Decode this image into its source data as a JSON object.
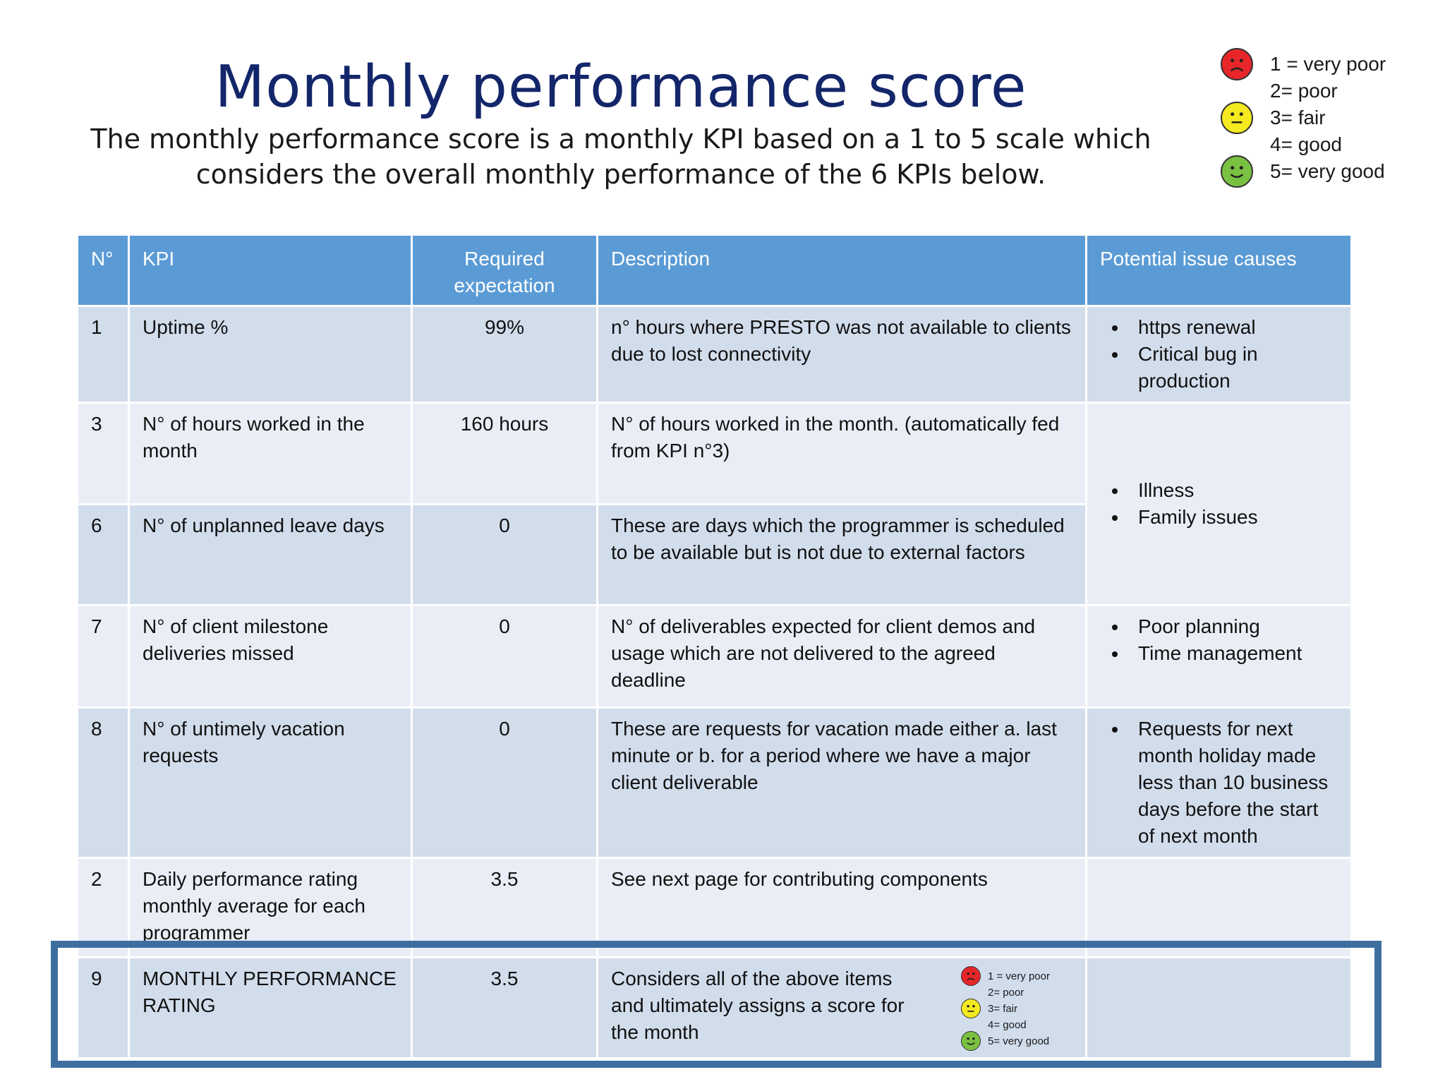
{
  "header": {
    "title": "Monthly performance score",
    "subtitle": "The monthly performance score is a monthly KPI based on a 1 to 5 scale which considers the overall monthly performance of the 6 KPIs below."
  },
  "legend": [
    {
      "label": "1 = very poor",
      "face": "sad-face-icon",
      "color": "#e8262a"
    },
    {
      "label": "2= poor",
      "face": null
    },
    {
      "label": "3= fair",
      "face": "neutral-face-icon",
      "color": "#f5e91f"
    },
    {
      "label": "4= good",
      "face": null
    },
    {
      "label": "5= very good",
      "face": "happy-face-icon",
      "color": "#7ac142"
    }
  ],
  "table": {
    "headers": {
      "num": "N°",
      "kpi": "KPI",
      "expectation": "Required expectation",
      "description": "Description",
      "causes": "Potential issue causes"
    },
    "rows": [
      {
        "num": "1",
        "kpi": "Uptime %",
        "expectation": "99%",
        "description": "n° hours where PRESTO was not available to clients due to lost connectivity",
        "causes": [
          "https renewal",
          "Critical bug in production"
        ]
      },
      {
        "num": "3",
        "kpi": "N° of hours worked in the month",
        "expectation": "160 hours",
        "description": "N° of hours worked in the month. (automatically fed from KPI n°3)",
        "causes": [
          "Illness",
          "Family issues"
        ]
      },
      {
        "num": "6",
        "kpi": "N° of unplanned leave days",
        "expectation": "0",
        "description": "These are days which the programmer is scheduled to be available but is not due to external factors"
      },
      {
        "num": "7",
        "kpi": "N° of client milestone deliveries missed",
        "expectation": "0",
        "description": "N° of deliverables expected for client demos and usage which are not delivered to the agreed deadline",
        "causes": [
          "Poor planning",
          "Time management"
        ]
      },
      {
        "num": "8",
        "kpi": "N° of untimely vacation requests",
        "expectation": "0",
        "description": "These are requests for vacation made either a. last minute or b. for a period where we have a major client deliverable",
        "causes": [
          "Requests for next month holiday made less than 10 business days before the start of next month"
        ]
      },
      {
        "num": "2",
        "kpi": "Daily performance rating monthly average for each programmer",
        "expectation": "3.5",
        "description": "See next page for contributing components",
        "causes": []
      },
      {
        "num": "9",
        "kpi": "MONTHLY PERFORMANCE RATING",
        "expectation": "3.5",
        "description": "Considers all of the above items and ultimately assigns a score for the month",
        "causes": []
      }
    ]
  }
}
